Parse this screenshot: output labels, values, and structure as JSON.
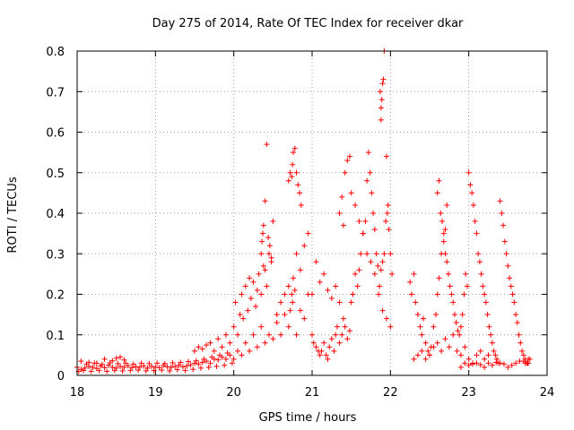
{
  "chart_data": {
    "type": "scatter",
    "title": "Day 275 of 2014, Rate Of TEC Index for receiver dkar",
    "xlabel": "GPS time / hours",
    "ylabel": "ROTI / TECUs",
    "xlim": [
      18,
      24
    ],
    "ylim": [
      0,
      0.8
    ],
    "xticks": [
      "18",
      "19",
      "20",
      "21",
      "22",
      "23",
      "24"
    ],
    "yticks": [
      "0",
      "0.1",
      "0.2",
      "0.3",
      "0.4",
      "0.5",
      "0.6",
      "0.7",
      "0.8"
    ],
    "grid": true,
    "legend": "none",
    "marker": "+",
    "marker_color": "#ff0000",
    "series": [
      {
        "name": "ROTI",
        "x": [
          18.0,
          18.05,
          18.1,
          18.15,
          18.2,
          18.25,
          18.3,
          18.35,
          18.4,
          18.45,
          18.5,
          18.55,
          18.6,
          18.65,
          18.7,
          18.75,
          18.8,
          18.85,
          18.9,
          18.95,
          19.0,
          19.05,
          19.1,
          19.15,
          19.2,
          19.25,
          19.3,
          19.35,
          19.4,
          19.45,
          19.5,
          19.55,
          19.6,
          19.65,
          19.7,
          19.75,
          19.8,
          19.85,
          19.9,
          19.95,
          18.02,
          18.08,
          18.12,
          18.18,
          18.22,
          18.28,
          18.32,
          18.38,
          18.42,
          18.48,
          18.52,
          18.58,
          18.62,
          18.68,
          18.72,
          18.78,
          18.82,
          18.88,
          18.92,
          18.98,
          19.02,
          19.08,
          19.12,
          19.18,
          19.22,
          19.28,
          19.32,
          19.38,
          19.42,
          19.48,
          19.52,
          19.58,
          19.62,
          19.68,
          19.72,
          19.78,
          19.82,
          19.88,
          19.92,
          19.98,
          18.05,
          18.15,
          18.25,
          18.35,
          18.45,
          18.5,
          18.55,
          18.6,
          19.5,
          19.55,
          19.6,
          19.65,
          19.7,
          19.75,
          19.8,
          19.85,
          19.9,
          19.95,
          20.0,
          20.02,
          20.05,
          20.08,
          20.1,
          20.12,
          20.15,
          20.18,
          20.2,
          20.22,
          20.25,
          20.28,
          20.3,
          20.32,
          20.35,
          20.38,
          20.4,
          20.42,
          20.45,
          20.48,
          20.0,
          20.05,
          20.1,
          20.15,
          20.2,
          20.25,
          20.3,
          20.35,
          20.4,
          20.45,
          20.5,
          20.55,
          20.6,
          20.65,
          20.7,
          20.75,
          20.8,
          20.85,
          20.9,
          20.95,
          20.35,
          20.36,
          20.37,
          20.38,
          20.4,
          20.42,
          20.44,
          20.46,
          20.48,
          20.5,
          20.55,
          20.6,
          20.65,
          20.7,
          20.72,
          20.74,
          20.76,
          20.78,
          20.8,
          20.85,
          20.9,
          20.95,
          21.0,
          21.05,
          21.1,
          21.15,
          21.2,
          21.25,
          21.3,
          21.35,
          20.7,
          20.72,
          20.74,
          20.75,
          20.76,
          20.78,
          20.8,
          20.82,
          20.84,
          20.86,
          21.0,
          21.02,
          21.05,
          21.08,
          21.1,
          21.12,
          21.15,
          21.18,
          21.2,
          21.22,
          21.25,
          21.28,
          21.3,
          21.32,
          21.35,
          21.38,
          21.4,
          21.42,
          21.45,
          21.48,
          21.5,
          21.52,
          21.55,
          21.58,
          21.6,
          21.62,
          21.65,
          21.68,
          21.7,
          21.72,
          21.74,
          21.76,
          21.78,
          21.8,
          21.82,
          21.84,
          21.86,
          21.88,
          21.9,
          21.92,
          21.35,
          21.38,
          21.4,
          21.42,
          21.45,
          21.48,
          21.5,
          21.55,
          21.6,
          21.65,
          21.7,
          21.75,
          21.8,
          21.85,
          21.9,
          21.95,
          22.0,
          21.88,
          21.89,
          21.9,
          21.91,
          21.92,
          21.87,
          21.88,
          21.95,
          21.96,
          21.97,
          21.98,
          22.0,
          22.02,
          21.94,
          22.25,
          22.27,
          22.3,
          22.32,
          22.35,
          22.38,
          22.4,
          22.42,
          22.45,
          22.48,
          22.5,
          22.52,
          22.55,
          22.58,
          22.6,
          22.62,
          22.65,
          22.68,
          22.7,
          22.72,
          22.3,
          22.35,
          22.4,
          22.45,
          22.5,
          22.55,
          22.6,
          22.65,
          22.7,
          22.75,
          22.8,
          22.85,
          22.9,
          22.95,
          23.0,
          23.05,
          23.1,
          23.15,
          23.2,
          23.25,
          22.6,
          22.62,
          22.64,
          22.66,
          22.68,
          22.7,
          22.72,
          22.74,
          22.76,
          22.78,
          22.8,
          22.82,
          22.84,
          22.86,
          22.88,
          22.9,
          22.92,
          22.94,
          22.96,
          22.98,
          23.0,
          23.02,
          23.04,
          23.06,
          23.08,
          23.1,
          23.12,
          23.14,
          23.16,
          23.18,
          23.2,
          23.22,
          23.24,
          23.26,
          23.28,
          23.3,
          23.32,
          23.34,
          23.36,
          23.38,
          23.4,
          23.42,
          23.44,
          23.46,
          23.48,
          23.5,
          23.52,
          23.54,
          23.56,
          23.58,
          23.6,
          23.62,
          23.64,
          23.66,
          23.68,
          23.7,
          23.72,
          23.74,
          23.76,
          23.78,
          22.9,
          23.0,
          23.1,
          23.2,
          23.3,
          23.4,
          23.5,
          23.6,
          23.7,
          23.75,
          22.95,
          23.05,
          23.15,
          23.25,
          23.35,
          23.45,
          23.55,
          23.65,
          23.72,
          23.76
        ],
        "y": [
          0.02,
          0.015,
          0.018,
          0.022,
          0.02,
          0.017,
          0.023,
          0.019,
          0.025,
          0.02,
          0.018,
          0.022,
          0.02,
          0.024,
          0.019,
          0.021,
          0.02,
          0.023,
          0.018,
          0.022,
          0.02,
          0.019,
          0.024,
          0.021,
          0.02,
          0.022,
          0.025,
          0.021,
          0.023,
          0.026,
          0.03,
          0.028,
          0.032,
          0.035,
          0.03,
          0.04,
          0.038,
          0.045,
          0.04,
          0.05,
          0.01,
          0.012,
          0.028,
          0.01,
          0.03,
          0.012,
          0.027,
          0.01,
          0.031,
          0.012,
          0.029,
          0.011,
          0.03,
          0.012,
          0.028,
          0.013,
          0.03,
          0.011,
          0.029,
          0.012,
          0.03,
          0.013,
          0.029,
          0.011,
          0.031,
          0.014,
          0.032,
          0.012,
          0.034,
          0.015,
          0.036,
          0.018,
          0.04,
          0.02,
          0.045,
          0.022,
          0.05,
          0.025,
          0.055,
          0.03,
          0.035,
          0.032,
          0.03,
          0.04,
          0.036,
          0.042,
          0.045,
          0.038,
          0.06,
          0.07,
          0.065,
          0.075,
          0.08,
          0.06,
          0.09,
          0.07,
          0.1,
          0.08,
          0.12,
          0.18,
          0.1,
          0.15,
          0.2,
          0.14,
          0.22,
          0.16,
          0.24,
          0.19,
          0.23,
          0.17,
          0.21,
          0.25,
          0.2,
          0.27,
          0.26,
          0.22,
          0.3,
          0.28,
          0.04,
          0.06,
          0.05,
          0.08,
          0.06,
          0.1,
          0.07,
          0.12,
          0.08,
          0.1,
          0.09,
          0.13,
          0.1,
          0.15,
          0.12,
          0.18,
          0.1,
          0.16,
          0.14,
          0.2,
          0.3,
          0.33,
          0.35,
          0.37,
          0.43,
          0.57,
          0.34,
          0.32,
          0.29,
          0.38,
          0.15,
          0.18,
          0.2,
          0.22,
          0.16,
          0.2,
          0.24,
          0.21,
          0.3,
          0.26,
          0.32,
          0.35,
          0.2,
          0.28,
          0.23,
          0.25,
          0.21,
          0.19,
          0.22,
          0.18,
          0.48,
          0.5,
          0.49,
          0.52,
          0.55,
          0.56,
          0.5,
          0.47,
          0.45,
          0.42,
          0.1,
          0.08,
          0.07,
          0.06,
          0.05,
          0.06,
          0.08,
          0.05,
          0.04,
          0.07,
          0.09,
          0.06,
          0.1,
          0.12,
          0.08,
          0.1,
          0.14,
          0.12,
          0.09,
          0.11,
          0.18,
          0.2,
          0.25,
          0.22,
          0.26,
          0.3,
          0.35,
          0.38,
          0.48,
          0.55,
          0.5,
          0.45,
          0.4,
          0.36,
          0.3,
          0.27,
          0.22,
          0.26,
          0.28,
          0.3,
          0.4,
          0.44,
          0.37,
          0.5,
          0.53,
          0.54,
          0.45,
          0.42,
          0.38,
          0.35,
          0.3,
          0.28,
          0.25,
          0.2,
          0.16,
          0.14,
          0.12,
          0.63,
          0.68,
          0.72,
          0.73,
          0.8,
          0.7,
          0.66,
          0.54,
          0.4,
          0.42,
          0.36,
          0.3,
          0.25,
          0.38,
          0.23,
          0.2,
          0.25,
          0.18,
          0.15,
          0.12,
          0.1,
          0.14,
          0.08,
          0.06,
          0.05,
          0.07,
          0.12,
          0.15,
          0.2,
          0.24,
          0.3,
          0.33,
          0.36,
          0.42,
          0.04,
          0.05,
          0.06,
          0.04,
          0.05,
          0.07,
          0.08,
          0.06,
          0.09,
          0.07,
          0.1,
          0.06,
          0.05,
          0.07,
          0.04,
          0.03,
          0.05,
          0.06,
          0.04,
          0.05,
          0.45,
          0.48,
          0.4,
          0.38,
          0.35,
          0.3,
          0.28,
          0.25,
          0.22,
          0.2,
          0.18,
          0.15,
          0.13,
          0.11,
          0.1,
          0.12,
          0.15,
          0.2,
          0.25,
          0.22,
          0.5,
          0.47,
          0.45,
          0.42,
          0.38,
          0.35,
          0.3,
          0.28,
          0.25,
          0.22,
          0.2,
          0.18,
          0.15,
          0.12,
          0.1,
          0.08,
          0.06,
          0.05,
          0.04,
          0.03,
          0.43,
          0.4,
          0.37,
          0.33,
          0.3,
          0.27,
          0.24,
          0.22,
          0.2,
          0.18,
          0.15,
          0.13,
          0.1,
          0.08,
          0.06,
          0.05,
          0.04,
          0.03,
          0.03,
          0.04,
          0.02,
          0.025,
          0.03,
          0.02,
          0.025,
          0.03,
          0.02,
          0.03,
          0.035,
          0.03,
          0.03,
          0.028,
          0.026,
          0.03,
          0.032,
          0.028,
          0.025,
          0.035,
          0.03,
          0.04
        ]
      }
    ]
  }
}
